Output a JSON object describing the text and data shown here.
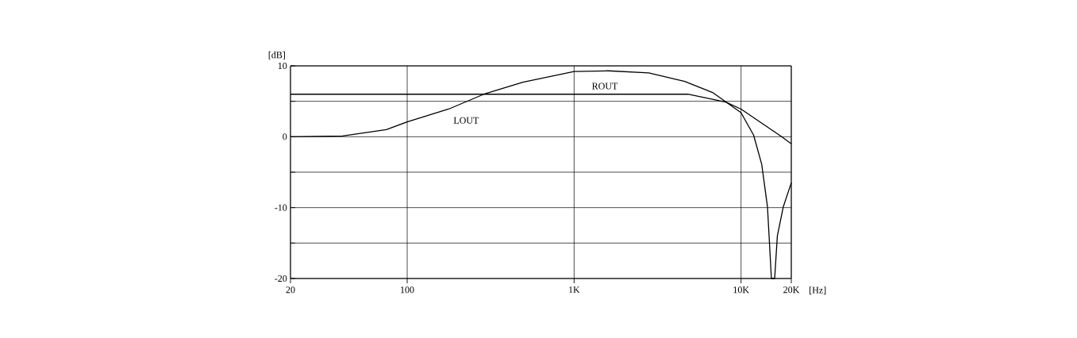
{
  "chart_data": {
    "type": "line",
    "xlabel": "[Hz]",
    "ylabel": "[dB]",
    "log": "x",
    "xlim": [
      20,
      20000
    ],
    "ylim": [
      -20,
      10
    ],
    "xticks": [
      20,
      100,
      {
        "value": 1000,
        "label": "1K"
      },
      {
        "value": 10000,
        "label": "10K"
      },
      {
        "value": 20000,
        "label": "20K"
      }
    ],
    "yticks": [
      -20,
      {
        "value": -15,
        "label": null
      },
      -10,
      {
        "value": -5,
        "label": null
      },
      0,
      {
        "value": 5,
        "label": null
      },
      10
    ],
    "grid": true,
    "marker": "none",
    "line_style": "solid",
    "series": [
      {
        "name": "LOUT",
        "color": "#000000",
        "x": [
          20,
          41,
          75,
          100,
          177,
          288,
          493,
          1000,
          1600,
          2800,
          4600,
          6800,
          10000,
          11900,
          13300,
          14400,
          15200,
          15900,
          16500,
          17900,
          20000
        ],
        "values": [
          0,
          0.1,
          1.0,
          2.1,
          3.9,
          6,
          7.7,
          9.2,
          9.3,
          9,
          7.8,
          6.2,
          3.4,
          0.2,
          -3.9,
          -9.9,
          -20,
          -20,
          -14,
          -9.9,
          -6.5
        ]
      },
      {
        "name": "ROUT",
        "color": "#000000",
        "x": [
          20,
          4800,
          8100,
          10000,
          17500,
          20000
        ],
        "values": [
          6,
          6,
          4.9,
          3.9,
          0,
          -1
        ]
      }
    ]
  }
}
